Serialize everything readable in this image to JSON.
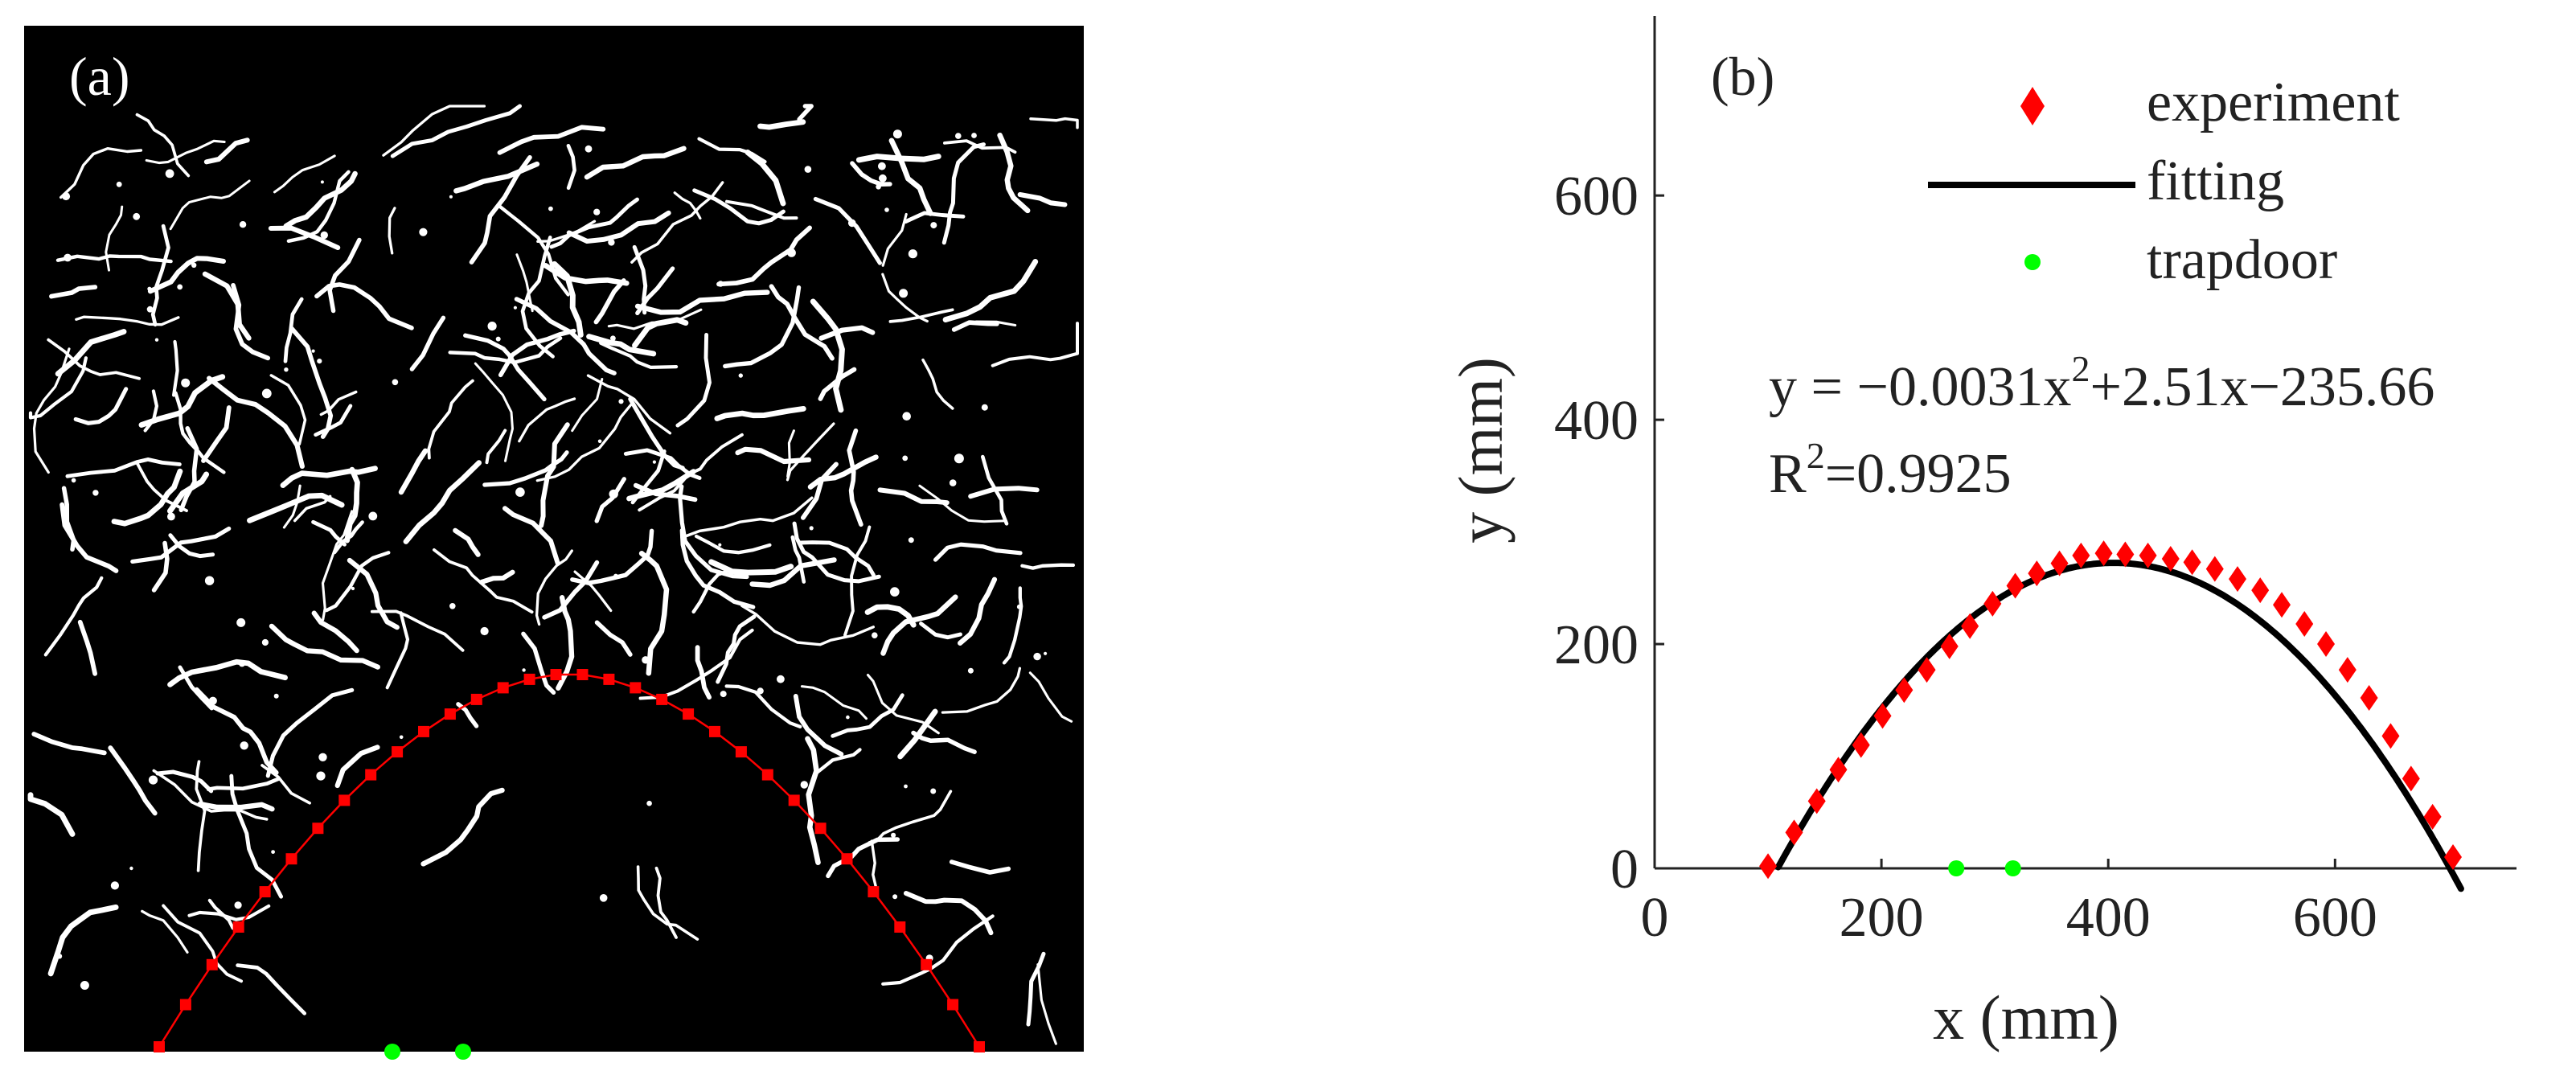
{
  "panel_a": {
    "label": "(a)",
    "background": "#000000",
    "crack_color": "#ffffff",
    "arch_color": "#ff0000",
    "trapdoor_color": "#00ff00"
  },
  "chart_data": {
    "type": "scatter",
    "panel_label": "(b)",
    "xlabel": "x (mm)",
    "ylabel": "y (mm)",
    "xlim": [
      0,
      760
    ],
    "ylim": [
      0,
      760
    ],
    "xticks": [
      "0",
      "200",
      "400",
      "600"
    ],
    "xtick_values": [
      0,
      200,
      400,
      600
    ],
    "yticks": [
      "0",
      "200",
      "400",
      "600"
    ],
    "ytick_values": [
      0,
      200,
      400,
      600
    ],
    "legend_position": "top-right",
    "series": [
      {
        "name": "experiment",
        "kind": "marker-diamond",
        "color": "#ff0000",
        "points": [
          [
            100,
            2
          ],
          [
            123,
            32
          ],
          [
            143,
            60
          ],
          [
            162,
            88
          ],
          [
            182,
            110
          ],
          [
            201,
            136
          ],
          [
            220,
            159
          ],
          [
            240,
            177
          ],
          [
            260,
            198
          ],
          [
            278,
            216
          ],
          [
            298,
            236
          ],
          [
            318,
            252
          ],
          [
            337,
            263
          ],
          [
            357,
            272
          ],
          [
            376,
            279
          ],
          [
            396,
            281
          ],
          [
            415,
            280
          ],
          [
            435,
            279
          ],
          [
            455,
            276
          ],
          [
            474,
            273
          ],
          [
            494,
            267
          ],
          [
            514,
            258
          ],
          [
            534,
            248
          ],
          [
            553,
            235
          ],
          [
            573,
            218
          ],
          [
            592,
            200
          ],
          [
            611,
            177
          ],
          [
            630,
            152
          ],
          [
            649,
            118
          ],
          [
            667,
            80
          ],
          [
            686,
            46
          ],
          [
            704,
            10
          ]
        ]
      },
      {
        "name": "fitting",
        "kind": "line",
        "color": "#000000",
        "coefficients": [
          -0.0031,
          2.51,
          -235.66
        ],
        "x_range": [
          109,
          711
        ]
      },
      {
        "name": "trapdoor",
        "kind": "marker-dot",
        "color": "#00ff00",
        "points": [
          [
            266,
            0
          ],
          [
            316,
            0
          ]
        ]
      }
    ],
    "annotations": {
      "equation_main": "y = −0.0031x",
      "equation_exponent": "2",
      "equation_tail": "+2.51x−235.66",
      "r2_prefix": "R",
      "r2_exponent": "2",
      "r2_tail": "=0.9925"
    }
  }
}
